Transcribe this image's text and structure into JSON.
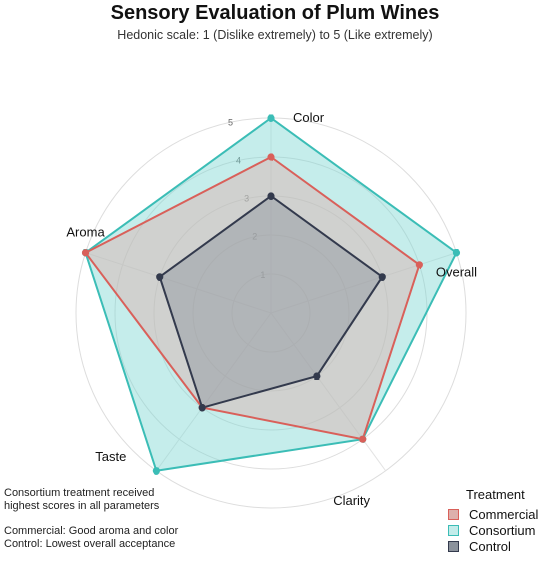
{
  "chart_data": {
    "type": "radar",
    "title": "Sensory Evaluation of Plum Wines",
    "subtitle": "Hedonic scale: 1 (Dislike extremely) to 5 (Like extremely)",
    "axes": [
      "Aroma",
      "Color",
      "Overall",
      "Clarity",
      "Taste"
    ],
    "rlim": [
      0,
      5
    ],
    "ticks": [
      "1",
      "2",
      "3",
      "4",
      "5"
    ],
    "grid": true,
    "legend_title": "Treatment",
    "legend_position": "bottom-right",
    "series": [
      {
        "name": "Consortium",
        "values": [
          5,
          5,
          5,
          4,
          5
        ],
        "labels": [
          "5",
          "5",
          "5",
          "4",
          "5"
        ],
        "color": "#3bbdb6",
        "fill": "#7fd6d2"
      },
      {
        "name": "Commercial",
        "values": [
          5,
          4,
          4,
          4,
          3
        ],
        "labels": [
          "",
          "4",
          "4",
          "",
          ""
        ],
        "color": "#d9605a",
        "fill": "#ddb0ac"
      },
      {
        "name": "Control",
        "values": [
          3,
          3,
          3,
          2,
          3
        ],
        "labels": [
          "3",
          "3",
          "3",
          "2",
          "3"
        ],
        "color": "#333a4d",
        "fill": "#8b929c"
      }
    ],
    "legend_order": [
      "Commercial",
      "Consortium",
      "Control"
    ],
    "annotations": [
      "Consortium treatment received",
      "highest scores in all parameters",
      "Commercial: Good aroma and color",
      "Control: Lowest overall acceptance"
    ]
  }
}
